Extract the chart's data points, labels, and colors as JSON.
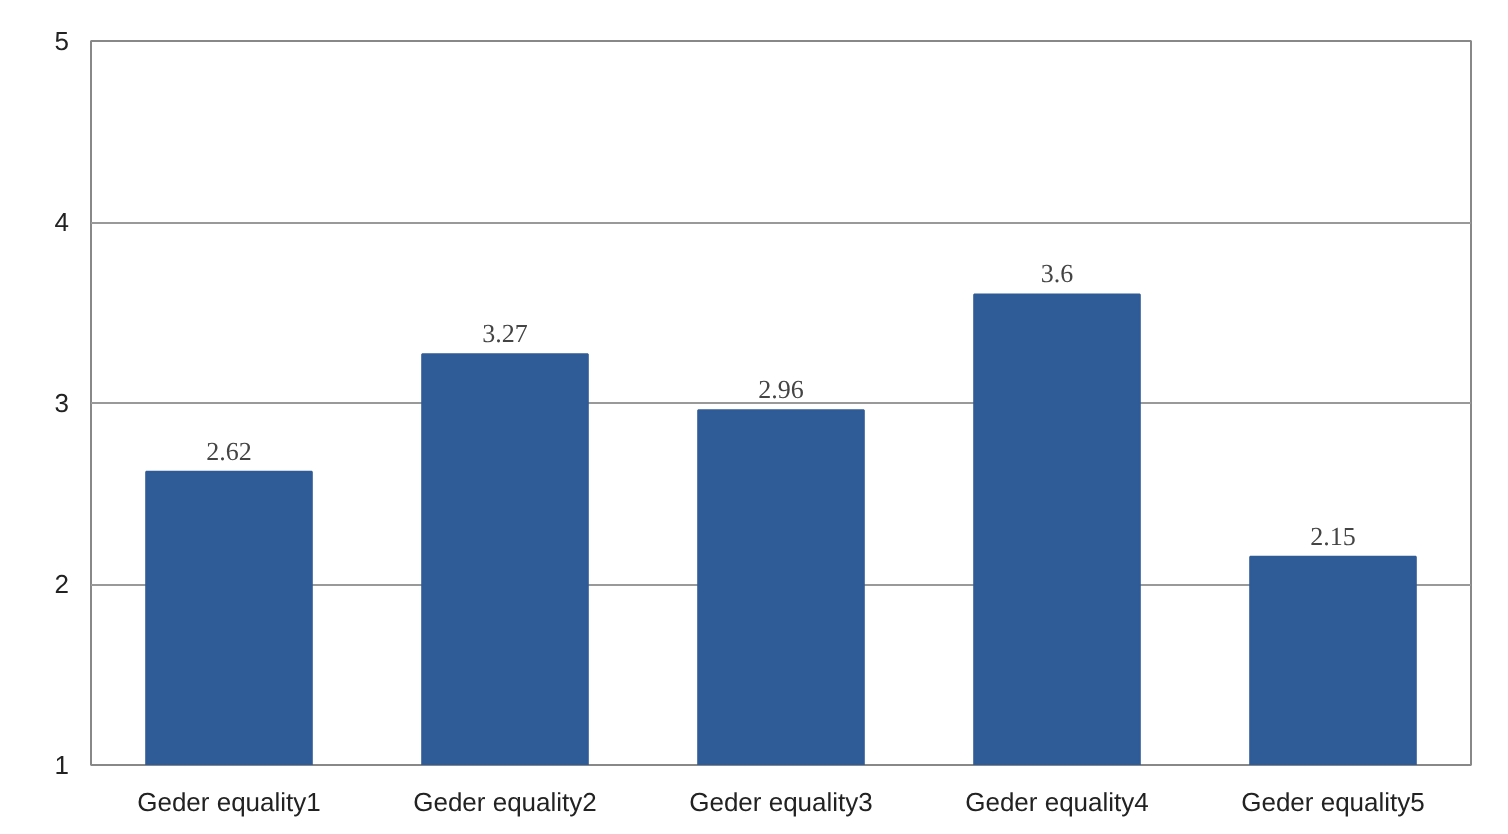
{
  "chart_data": {
    "type": "bar",
    "categories": [
      "Geder equality1",
      "Geder equality2",
      "Geder equality3",
      "Geder equality4",
      "Geder equality5"
    ],
    "values": [
      2.62,
      3.27,
      2.96,
      3.6,
      2.15
    ],
    "color": "#2f5b97",
    "ylim": [
      1,
      5
    ],
    "yticks": [
      1,
      2,
      3,
      4,
      5
    ],
    "grid": "y",
    "data_labels": true
  }
}
